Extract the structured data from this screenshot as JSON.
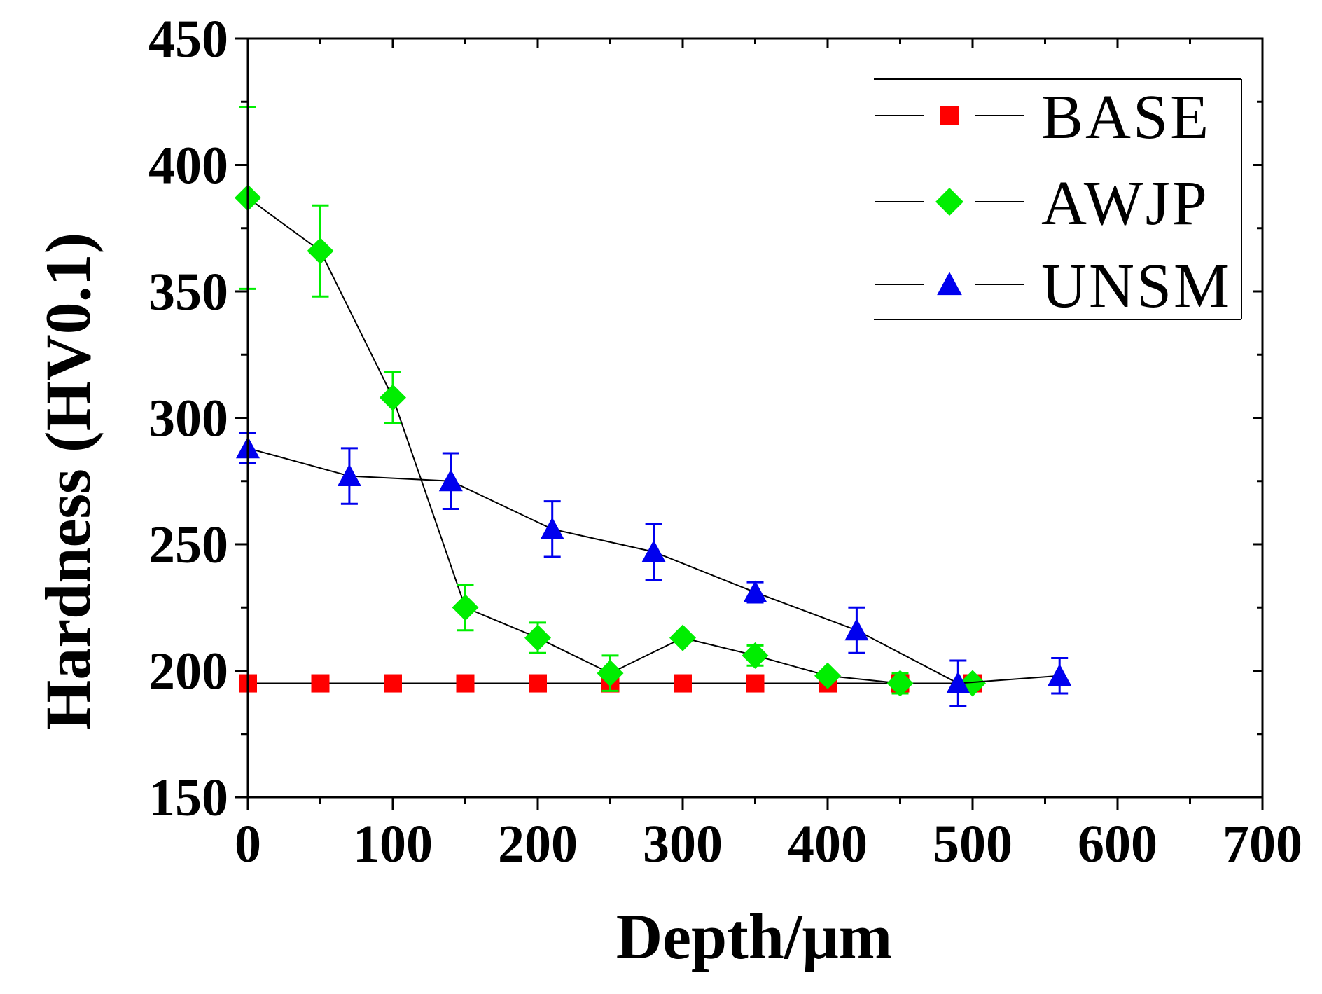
{
  "chart_data": {
    "type": "line",
    "title": "",
    "xlabel": "Depth/μm",
    "ylabel": "Hardness (HV0.1)",
    "xlim": [
      0,
      700
    ],
    "ylim": [
      150,
      450
    ],
    "xticks": [
      0,
      100,
      200,
      300,
      400,
      500,
      600,
      700
    ],
    "yticks": [
      150,
      200,
      250,
      300,
      350,
      400,
      450
    ],
    "xtick_labels": [
      "0",
      "100",
      "200",
      "300",
      "400",
      "500",
      "600",
      "700"
    ],
    "ytick_labels": [
      "150",
      "200",
      "250",
      "300",
      "350",
      "400",
      "450"
    ],
    "legend_position": "top-right",
    "series": [
      {
        "name": "BASE",
        "marker": "square",
        "color": "#ff0000",
        "x": [
          0,
          50,
          100,
          150,
          200,
          250,
          300,
          350,
          400,
          450,
          500
        ],
        "y": [
          195,
          195,
          195,
          195,
          195,
          195,
          195,
          195,
          195,
          195,
          195
        ],
        "err": [
          0,
          0,
          0,
          0,
          0,
          0,
          0,
          0,
          0,
          0,
          0
        ]
      },
      {
        "name": "AWJP",
        "marker": "diamond",
        "color": "#00ee00",
        "x": [
          0,
          50,
          100,
          150,
          200,
          250,
          300,
          350,
          400,
          450,
          500
        ],
        "y": [
          387,
          366,
          308,
          225,
          213,
          199,
          213,
          206,
          198,
          195,
          195
        ],
        "err": [
          36,
          18,
          10,
          9,
          6,
          7,
          0,
          4,
          0,
          4,
          0
        ]
      },
      {
        "name": "UNSM",
        "marker": "triangle",
        "color": "#0000ee",
        "x": [
          0,
          70,
          140,
          210,
          280,
          350,
          420,
          490,
          560
        ],
        "y": [
          288,
          277,
          275,
          256,
          247,
          231,
          216,
          195,
          198
        ],
        "err": [
          6,
          11,
          11,
          11,
          11,
          4,
          9,
          9,
          7
        ]
      }
    ]
  }
}
